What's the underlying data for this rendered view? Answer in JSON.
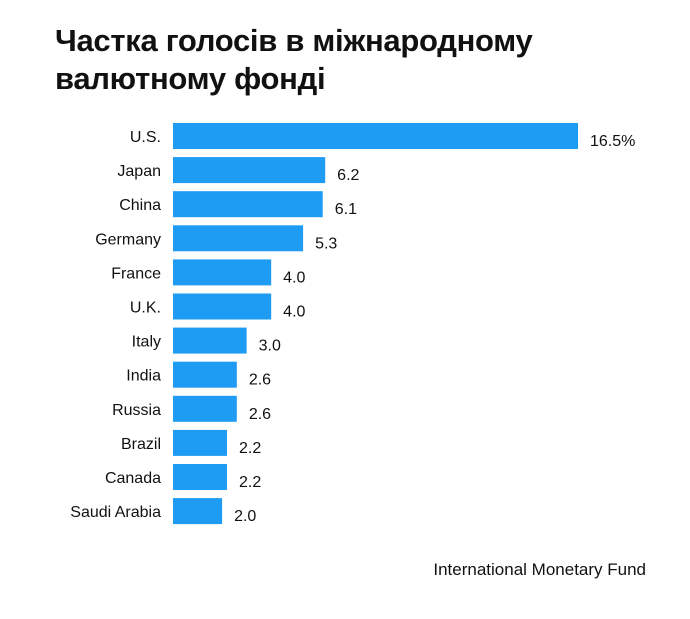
{
  "chart_data": {
    "type": "bar",
    "orientation": "horizontal",
    "title": "Частка голосів в міжнародному валютному фонді",
    "categories": [
      "U.S.",
      "Japan",
      "China",
      "Germany",
      "France",
      "U.K.",
      "Italy",
      "India",
      "Russia",
      "Brazil",
      "Canada",
      "Saudi Arabia"
    ],
    "values": [
      16.5,
      6.2,
      6.1,
      5.3,
      4.0,
      4.0,
      3.0,
      2.6,
      2.6,
      2.2,
      2.2,
      2.0
    ],
    "labels": [
      "16.5%",
      "6.2",
      "6.1",
      "5.3",
      "4.0",
      "4.0",
      "3.0",
      "2.6",
      "2.6",
      "2.2",
      "2.2",
      "2.0"
    ],
    "xlabel": "",
    "ylabel": "",
    "xlim": [
      0,
      16.5
    ],
    "grid": false,
    "bar_color": "#1e9bf2",
    "source": "International Monetary Fund"
  }
}
